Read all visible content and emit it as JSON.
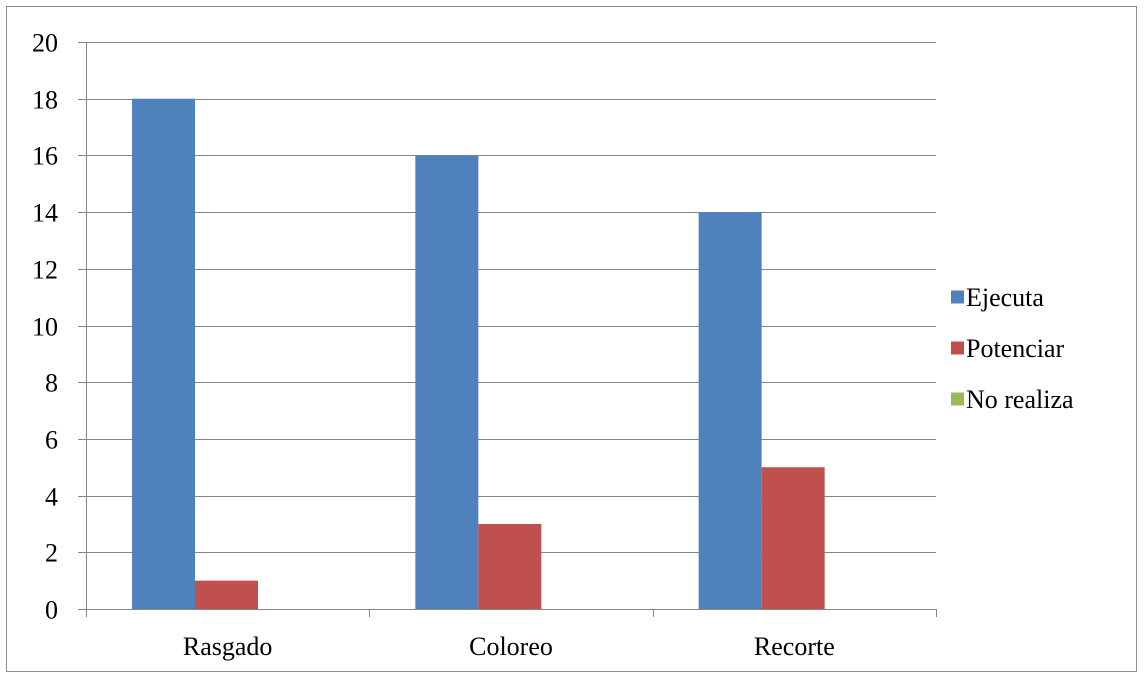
{
  "chart_data": {
    "type": "bar",
    "categories": [
      "Rasgado",
      "Coloreo",
      "Recorte"
    ],
    "series": [
      {
        "name": "Ejecuta",
        "values": [
          18,
          16,
          14
        ],
        "color": "#4F81BD"
      },
      {
        "name": "Potenciar",
        "values": [
          1,
          3,
          5
        ],
        "color": "#C0504D"
      },
      {
        "name": "No realiza",
        "values": [
          0,
          0,
          0
        ],
        "color": "#9BBB59"
      }
    ],
    "ylim": [
      0,
      20
    ],
    "yticks": [
      0,
      2,
      4,
      6,
      8,
      10,
      12,
      14,
      16,
      18,
      20
    ],
    "grid": true,
    "legend_position": "right"
  }
}
